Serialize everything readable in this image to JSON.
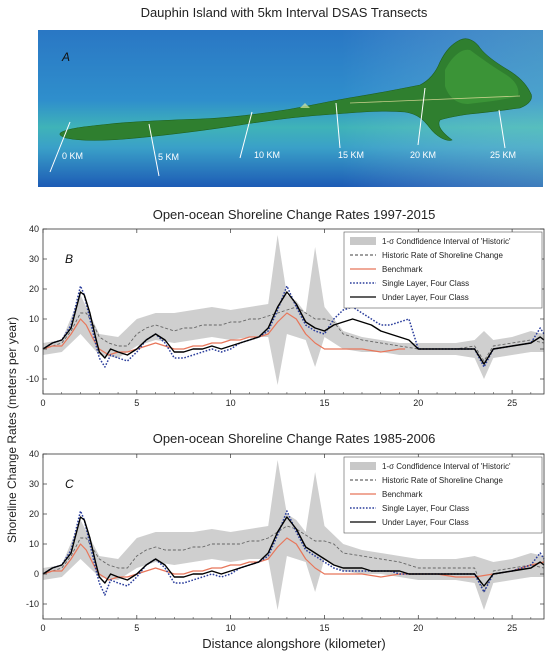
{
  "map_panel": {
    "title": "Dauphin Island with 5km Interval DSAS Transects",
    "panel_letter": "A",
    "transect_labels": [
      "0 KM",
      "5 KM",
      "10 KM",
      "15 KM",
      "20 KM",
      "25 KM"
    ],
    "colors": {
      "water_deep": "#1f5fb8",
      "water_mid": "#2f86c8",
      "water_shallow": "#4fb8a8",
      "land": "#2e7d2e",
      "transect": "#ffffff"
    }
  },
  "shared": {
    "ylabel": "Shoreline Change Rates (meters per year)",
    "xlabel": "Distance alongshore (kilometer)"
  },
  "chart_data": [
    {
      "type": "line",
      "panel_letter": "B",
      "title": "Open-ocean Shoreline Change Rates 1997-2015",
      "xlim": [
        0,
        26.7
      ],
      "ylim": [
        -15,
        40
      ],
      "x_ticks": [
        0,
        5,
        10,
        15,
        20,
        25
      ],
      "y_ticks": [
        -10,
        0,
        10,
        20,
        30,
        40
      ],
      "legend_position": "top-right",
      "legend": [
        {
          "label": "1-σ Condfidence Interval of 'Historic'",
          "style": "band",
          "color": "#c8c8c8"
        },
        {
          "label": "Historic Rate of Shoreline Change",
          "style": "dashed",
          "color": "#666666"
        },
        {
          "label": "Benchmark",
          "style": "solid",
          "color": "#e8765a"
        },
        {
          "label": "Single Layer, Four Class",
          "style": "dotted",
          "color": "#2a3d9c"
        },
        {
          "label": "Under Layer, Four Class",
          "style": "solid",
          "color": "#000000"
        }
      ],
      "band": {
        "x": [
          0,
          1,
          2,
          3,
          4,
          5,
          6,
          7,
          8,
          9,
          10,
          11,
          12,
          12.5,
          13,
          13.5,
          14,
          14.5,
          15,
          16,
          17,
          18,
          19,
          20,
          21,
          22,
          23,
          23.5,
          24,
          25,
          26,
          26.7
        ],
        "upper": [
          2,
          3,
          18,
          5,
          4,
          10,
          12,
          12,
          13,
          14,
          13,
          14,
          15,
          38,
          18,
          16,
          12,
          34,
          14,
          6,
          4,
          3,
          2,
          2,
          2,
          2,
          3,
          6,
          3,
          4,
          6,
          5
        ],
        "lower": [
          -2,
          -1,
          5,
          -2,
          -3,
          1,
          3,
          2,
          3,
          4,
          3,
          4,
          4,
          -12,
          5,
          4,
          3,
          -6,
          4,
          0,
          -1,
          -1,
          -2,
          -2,
          -2,
          -2,
          -3,
          -10,
          -3,
          -2,
          -1,
          -1
        ]
      },
      "series": [
        {
          "name": "Historic Rate of Shoreline Change",
          "x": [
            0,
            0.5,
            1,
            1.5,
            2,
            2.3,
            2.7,
            3,
            3.5,
            4,
            4.5,
            5,
            5.5,
            6,
            6.5,
            7,
            7.5,
            8,
            8.5,
            9,
            9.5,
            10,
            10.5,
            11,
            11.5,
            12,
            12.5,
            13,
            13.5,
            14,
            14.5,
            15,
            15.5,
            16,
            17,
            18,
            19,
            20,
            21,
            22,
            23,
            23.5,
            24,
            25,
            26,
            26.7
          ],
          "y": [
            0,
            1,
            2,
            6,
            12,
            12,
            8,
            4,
            2,
            1,
            1,
            5,
            7,
            8,
            7,
            6,
            7,
            7,
            8,
            8,
            8,
            9,
            9,
            10,
            10,
            11,
            12,
            13,
            14,
            12,
            10,
            10,
            9,
            5,
            3,
            2,
            1,
            0,
            0,
            0,
            1,
            -4,
            1,
            2,
            3,
            2
          ]
        },
        {
          "name": "Benchmark",
          "x": [
            0,
            0.5,
            1,
            1.5,
            2,
            2.3,
            2.7,
            3,
            3.5,
            4,
            4.5,
            5,
            5.5,
            6,
            6.5,
            7,
            7.5,
            8,
            8.5,
            9,
            9.5,
            10,
            10.5,
            11,
            11.5,
            12,
            12.5,
            13,
            13.5,
            14,
            14.5,
            15,
            15.5,
            16,
            17,
            18,
            19,
            19.3
          ],
          "y": [
            0,
            1,
            1,
            5,
            10,
            8,
            3,
            0,
            -2,
            -1,
            -1,
            0,
            1,
            2,
            1,
            0,
            0,
            1,
            1,
            2,
            2,
            3,
            3,
            4,
            4,
            5,
            9,
            12,
            10,
            5,
            2,
            0,
            0,
            0,
            0,
            -1,
            0,
            0
          ]
        },
        {
          "name": "Single Layer, Four Class",
          "x": [
            0,
            0.5,
            1,
            1.5,
            2,
            2.2,
            2.5,
            2.8,
            3,
            3.3,
            3.6,
            4,
            4.5,
            5,
            5.5,
            6,
            6.5,
            7,
            7.5,
            8,
            8.5,
            9,
            9.5,
            10,
            10.5,
            11,
            11.5,
            12,
            12.5,
            13,
            13.5,
            14,
            14.5,
            15,
            15.5,
            16,
            16.5,
            17,
            17.5,
            18,
            18.5,
            19,
            19.5,
            20,
            21,
            22,
            23,
            23.5,
            24,
            25,
            26,
            26.5,
            26.7
          ],
          "y": [
            0,
            2,
            3,
            8,
            21,
            18,
            10,
            2,
            -3,
            -6,
            -2,
            -3,
            -4,
            -1,
            3,
            5,
            2,
            -3,
            -3,
            -2,
            -1,
            0,
            -1,
            0,
            2,
            3,
            4,
            6,
            13,
            21,
            14,
            8,
            6,
            5,
            10,
            13,
            14,
            12,
            10,
            8,
            8,
            9,
            10,
            0,
            0,
            0,
            0,
            -6,
            0,
            1,
            2,
            7,
            5
          ]
        },
        {
          "name": "Under Layer, Four Class",
          "x": [
            0,
            0.5,
            1,
            1.5,
            2,
            2.2,
            2.5,
            2.8,
            3,
            3.3,
            3.6,
            4,
            4.5,
            5,
            5.5,
            6,
            6.5,
            7,
            7.5,
            8,
            8.5,
            9,
            9.5,
            10,
            10.5,
            11,
            11.5,
            12,
            12.5,
            13,
            13.5,
            14,
            14.5,
            15,
            15.5,
            16,
            16.5,
            17,
            17.5,
            18,
            18.5,
            19,
            19.5,
            20,
            21,
            22,
            23,
            23.5,
            24,
            25,
            26,
            26.5,
            26.7
          ],
          "y": [
            0,
            2,
            3,
            7,
            19,
            18,
            12,
            4,
            -1,
            -3,
            0,
            -1,
            -2,
            0,
            3,
            5,
            3,
            -1,
            -1,
            0,
            0,
            1,
            0,
            1,
            2,
            3,
            4,
            7,
            14,
            19,
            15,
            9,
            7,
            6,
            8,
            9,
            10,
            9,
            8,
            6,
            5,
            4,
            3,
            0,
            0,
            0,
            0,
            -5,
            0,
            1,
            2,
            4,
            3
          ]
        }
      ]
    },
    {
      "type": "line",
      "panel_letter": "C",
      "title": "Open-ocean Shoreline Change Rates 1985-2006",
      "xlim": [
        0,
        26.7
      ],
      "ylim": [
        -15,
        40
      ],
      "x_ticks": [
        0,
        5,
        10,
        15,
        20,
        25
      ],
      "y_ticks": [
        -10,
        0,
        10,
        20,
        30,
        40
      ],
      "legend_position": "top-right",
      "legend": [
        {
          "label": "1-σ Condfidence Interval of 'Historic'",
          "style": "band",
          "color": "#c8c8c8"
        },
        {
          "label": "Historic Rate of Shoreline Change",
          "style": "dashed",
          "color": "#666666"
        },
        {
          "label": "Benchmark",
          "style": "solid",
          "color": "#e8765a"
        },
        {
          "label": "Single Layer, Four Class",
          "style": "dotted",
          "color": "#2a3d9c"
        },
        {
          "label": "Under Layer, Four Class",
          "style": "solid",
          "color": "#000000"
        }
      ],
      "band": {
        "x": [
          0,
          1,
          2,
          3,
          4,
          5,
          6,
          7,
          8,
          9,
          10,
          11,
          12,
          12.5,
          13,
          13.5,
          14,
          14.5,
          15,
          16,
          17,
          18,
          19,
          20,
          21,
          22,
          23,
          23.5,
          24,
          25,
          26,
          26.7
        ],
        "upper": [
          2,
          3,
          18,
          6,
          5,
          12,
          14,
          14,
          14,
          15,
          14,
          15,
          16,
          38,
          20,
          18,
          14,
          34,
          16,
          10,
          8,
          7,
          6,
          5,
          5,
          5,
          6,
          5,
          4,
          5,
          7,
          6
        ],
        "lower": [
          -2,
          -1,
          5,
          -1,
          -2,
          2,
          4,
          3,
          4,
          5,
          4,
          5,
          5,
          -12,
          6,
          5,
          4,
          -6,
          5,
          1,
          0,
          0,
          -1,
          -2,
          -2,
          -2,
          -3,
          -12,
          -3,
          -2,
          -1,
          -1
        ]
      },
      "series": [
        {
          "name": "Historic Rate of Shoreline Change",
          "x": [
            0,
            0.5,
            1,
            1.5,
            2,
            2.3,
            2.7,
            3,
            3.5,
            4,
            4.5,
            5,
            5.5,
            6,
            6.5,
            7,
            7.5,
            8,
            8.5,
            9,
            9.5,
            10,
            10.5,
            11,
            11.5,
            12,
            12.5,
            13,
            13.5,
            14,
            14.5,
            15,
            15.5,
            16,
            17,
            18,
            19,
            20,
            21,
            22,
            23,
            23.5,
            24,
            25,
            26,
            26.7
          ],
          "y": [
            0,
            1,
            2,
            6,
            12,
            12,
            8,
            5,
            3,
            2,
            2,
            6,
            8,
            9,
            8,
            8,
            8,
            9,
            9,
            10,
            10,
            10,
            10,
            11,
            11,
            12,
            14,
            16,
            15,
            13,
            11,
            11,
            10,
            7,
            6,
            5,
            4,
            2,
            2,
            2,
            2,
            -6,
            1,
            2,
            3,
            2
          ]
        },
        {
          "name": "Benchmark",
          "x": [
            0,
            0.5,
            1,
            1.5,
            2,
            2.3,
            2.7,
            3,
            3.5,
            4,
            4.5,
            5,
            5.5,
            6,
            6.5,
            7,
            7.5,
            8,
            8.5,
            9,
            9.5,
            10,
            10.5,
            11,
            11.5,
            12,
            12.5,
            13,
            13.5,
            14,
            14.5,
            15,
            15.5,
            16,
            17,
            18,
            19,
            20,
            21,
            22,
            23,
            24,
            25,
            26,
            26.7
          ],
          "y": [
            0,
            1,
            1,
            5,
            10,
            8,
            3,
            0,
            -2,
            -1,
            -1,
            0,
            1,
            2,
            1,
            0,
            0,
            1,
            1,
            2,
            2,
            3,
            3,
            4,
            4,
            5,
            9,
            12,
            10,
            5,
            2,
            0,
            0,
            0,
            0,
            -1,
            0,
            0,
            0,
            -1,
            -1,
            0,
            1,
            3,
            4
          ]
        },
        {
          "name": "Single Layer, Four Class",
          "x": [
            0,
            0.5,
            1,
            1.5,
            2,
            2.2,
            2.5,
            2.8,
            3,
            3.3,
            3.6,
            4,
            4.5,
            5,
            5.5,
            6,
            6.5,
            7,
            7.5,
            8,
            8.5,
            9,
            9.5,
            10,
            10.5,
            11,
            11.5,
            12,
            12.5,
            13,
            13.5,
            14,
            14.5,
            15,
            15.5,
            16,
            16.5,
            17,
            17.5,
            18,
            18.5,
            19,
            19.5,
            20,
            21,
            22,
            23,
            23.5,
            24,
            25,
            26,
            26.5,
            26.7
          ],
          "y": [
            0,
            2,
            3,
            8,
            21,
            18,
            10,
            2,
            -3,
            -7,
            -2,
            -3,
            -4,
            -1,
            3,
            5,
            2,
            -3,
            -3,
            -2,
            -1,
            0,
            -1,
            0,
            2,
            3,
            4,
            6,
            13,
            21,
            14,
            8,
            6,
            4,
            2,
            1,
            1,
            1,
            1,
            1,
            1,
            0,
            0,
            0,
            0,
            0,
            0,
            -6,
            0,
            1,
            3,
            7,
            5
          ]
        },
        {
          "name": "Under Layer, Four Class",
          "x": [
            0,
            0.5,
            1,
            1.5,
            2,
            2.2,
            2.5,
            2.8,
            3,
            3.3,
            3.6,
            4,
            4.5,
            5,
            5.5,
            6,
            6.5,
            7,
            7.5,
            8,
            8.5,
            9,
            9.5,
            10,
            10.5,
            11,
            11.5,
            12,
            12.5,
            13,
            13.5,
            14,
            14.5,
            15,
            15.5,
            16,
            16.5,
            17,
            17.5,
            18,
            18.5,
            19,
            19.5,
            20,
            21,
            22,
            23,
            23.5,
            24,
            25,
            26,
            26.5,
            26.7
          ],
          "y": [
            0,
            2,
            3,
            7,
            19,
            18,
            12,
            4,
            -1,
            -3,
            0,
            -1,
            -2,
            0,
            3,
            5,
            3,
            -1,
            -1,
            0,
            0,
            1,
            0,
            1,
            2,
            3,
            4,
            7,
            14,
            19,
            15,
            9,
            7,
            5,
            3,
            2,
            2,
            2,
            1,
            1,
            1,
            1,
            0,
            0,
            0,
            0,
            0,
            -4,
            0,
            1,
            2,
            4,
            3
          ]
        }
      ]
    }
  ]
}
